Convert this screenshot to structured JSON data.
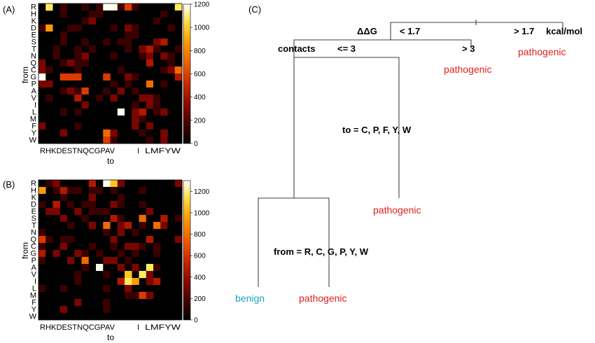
{
  "panels": {
    "a": {
      "label": "(A)",
      "x_title": "to",
      "y_title": "from",
      "colorbar": {
        "max": 1200,
        "ticks": [
          0,
          200,
          400,
          600,
          800,
          1000,
          1200
        ]
      }
    },
    "b": {
      "label": "(B)",
      "x_title": "to",
      "y_title": "from",
      "colorbar": {
        "max": 1300,
        "ticks": [
          0,
          200,
          400,
          600,
          800,
          1000,
          1200
        ]
      }
    },
    "c": {
      "label": "(C)"
    }
  },
  "amino_acids": [
    "R",
    "H",
    "K",
    "D",
    "E",
    "S",
    "T",
    "N",
    "Q",
    "C",
    "G",
    "P",
    "A",
    "V",
    "I",
    "L",
    "M",
    "F",
    "Y",
    "W"
  ],
  "x_tick_strings": {
    "group1": "RHKDESTNQCGPAV",
    "group2": "I",
    "group3": "LMFYW"
  },
  "colormap": [
    "#000000",
    "#3a0000",
    "#7a0500",
    "#b01800",
    "#dc3a00",
    "#f26a00",
    "#fb9a06",
    "#ffc520",
    "#ffeb5a",
    "#fffff0"
  ],
  "chart_data": [
    {
      "type": "heatmap",
      "panel": "A",
      "xlabel": "to",
      "ylabel": "from",
      "zlim": [
        0,
        1200
      ],
      "rows": [
        "R",
        "H",
        "K",
        "D",
        "E",
        "S",
        "T",
        "N",
        "Q",
        "C",
        "G",
        "P",
        "A",
        "V",
        "I",
        "L",
        "M",
        "F",
        "Y",
        "W"
      ],
      "cols": [
        "R",
        "H",
        "K",
        "D",
        "E",
        "S",
        "T",
        "N",
        "Q",
        "C",
        "G",
        "P",
        "A",
        "V",
        "I",
        "L",
        "M",
        "F",
        "Y",
        "W"
      ],
      "values": [
        [
          0,
          1050,
          60,
          70,
          40,
          50,
          80,
          60,
          90,
          1150,
          1150,
          120,
          560,
          70,
          40,
          30,
          40,
          20,
          30,
          1050
        ],
        [
          40,
          0,
          30,
          150,
          60,
          40,
          30,
          100,
          80,
          50,
          40,
          60,
          30,
          50,
          20,
          60,
          40,
          90,
          40,
          30
        ],
        [
          30,
          20,
          0,
          40,
          60,
          30,
          120,
          300,
          40,
          20,
          30,
          40,
          20,
          30,
          60,
          40,
          100,
          30,
          20,
          30
        ],
        [
          80,
          850,
          40,
          0,
          100,
          80,
          60,
          50,
          40,
          30,
          70,
          30,
          200,
          180,
          40,
          30,
          30,
          20,
          120,
          20
        ],
        [
          50,
          40,
          50,
          80,
          0,
          40,
          50,
          40,
          60,
          30,
          50,
          30,
          180,
          90,
          40,
          30,
          40,
          20,
          30,
          20
        ],
        [
          60,
          40,
          30,
          70,
          40,
          0,
          150,
          60,
          50,
          120,
          60,
          120,
          80,
          30,
          60,
          40,
          300,
          380,
          30,
          60
        ],
        [
          40,
          30,
          80,
          50,
          40,
          90,
          0,
          70,
          40,
          30,
          30,
          60,
          140,
          40,
          320,
          400,
          90,
          30,
          60,
          70
        ],
        [
          50,
          60,
          170,
          60,
          40,
          150,
          200,
          0,
          60,
          30,
          90,
          40,
          60,
          40,
          100,
          300,
          60,
          200,
          130,
          40
        ],
        [
          300,
          50,
          40,
          70,
          200,
          70,
          100,
          60,
          0,
          40,
          40,
          60,
          40,
          50,
          60,
          400,
          60,
          60,
          140,
          50
        ],
        [
          300,
          150,
          50,
          40,
          40,
          90,
          40,
          40,
          60,
          0,
          60,
          90,
          40,
          50,
          30,
          50,
          40,
          100,
          200,
          600
        ],
        [
          1250,
          60,
          40,
          550,
          540,
          500,
          60,
          50,
          40,
          550,
          0,
          40,
          250,
          100,
          40,
          60,
          40,
          60,
          30,
          400
        ],
        [
          300,
          250,
          40,
          30,
          40,
          60,
          40,
          50,
          40,
          60,
          70,
          0,
          100,
          50,
          60,
          700,
          40,
          70,
          60,
          30
        ],
        [
          60,
          50,
          40,
          150,
          220,
          120,
          470,
          40,
          60,
          80,
          60,
          200,
          0,
          80,
          40,
          60,
          60,
          40,
          20,
          30
        ],
        [
          40,
          90,
          30,
          60,
          60,
          350,
          60,
          30,
          100,
          50,
          300,
          40,
          60,
          0,
          200,
          250,
          80,
          60,
          40,
          30
        ],
        [
          60,
          40,
          30,
          40,
          50,
          60,
          200,
          40,
          60,
          40,
          50,
          60,
          60,
          180,
          0,
          300,
          70,
          60,
          40,
          30
        ],
        [
          30,
          40,
          30,
          160,
          40,
          70,
          40,
          50,
          60,
          40,
          60,
          1150,
          60,
          200,
          350,
          0,
          150,
          200,
          40,
          30
        ],
        [
          50,
          60,
          40,
          40,
          50,
          60,
          40,
          40,
          60,
          40,
          60,
          40,
          30,
          200,
          150,
          60,
          0,
          40,
          30,
          30
        ],
        [
          200,
          40,
          40,
          60,
          40,
          70,
          60,
          40,
          60,
          40,
          30,
          60,
          50,
          200,
          60,
          300,
          60,
          0,
          40,
          30
        ],
        [
          60,
          40,
          30,
          250,
          40,
          40,
          50,
          60,
          40,
          700,
          300,
          40,
          60,
          40,
          70,
          40,
          60,
          250,
          0,
          50
        ],
        [
          50,
          60,
          40,
          60,
          40,
          50,
          60,
          40,
          60,
          500,
          80,
          40,
          60,
          40,
          60,
          70,
          60,
          250,
          60,
          0
        ]
      ]
    },
    {
      "type": "heatmap",
      "panel": "B",
      "xlabel": "to",
      "ylabel": "from",
      "zlim": [
        0,
        1300
      ],
      "rows": [
        "R",
        "H",
        "K",
        "D",
        "E",
        "S",
        "T",
        "N",
        "Q",
        "C",
        "G",
        "P",
        "A",
        "V",
        "I",
        "L",
        "M",
        "F",
        "Y",
        "W"
      ],
      "cols": [
        "R",
        "H",
        "K",
        "D",
        "E",
        "S",
        "T",
        "N",
        "Q",
        "C",
        "G",
        "P",
        "A",
        "V",
        "I",
        "L",
        "M",
        "F",
        "Y",
        "W"
      ],
      "values": [
        [
          0,
          200,
          300,
          60,
          70,
          50,
          70,
          500,
          60,
          1300,
          1000,
          300,
          60,
          40,
          50,
          60,
          40,
          60,
          70,
          300
        ],
        [
          900,
          0,
          100,
          450,
          200,
          80,
          60,
          200,
          90,
          60,
          80,
          70,
          60,
          50,
          80,
          60,
          40,
          70,
          60,
          50
        ],
        [
          70,
          40,
          0,
          80,
          60,
          70,
          50,
          300,
          60,
          50,
          60,
          80,
          40,
          60,
          40,
          50,
          60,
          40,
          30,
          40
        ],
        [
          150,
          60,
          400,
          0,
          120,
          60,
          150,
          80,
          60,
          70,
          300,
          90,
          60,
          60,
          80,
          40,
          60,
          50,
          60,
          40
        ],
        [
          60,
          300,
          250,
          70,
          0,
          350,
          60,
          80,
          90,
          200,
          60,
          70,
          60,
          50,
          60,
          350,
          60,
          60,
          60,
          40
        ],
        [
          60,
          40,
          60,
          300,
          60,
          0,
          80,
          60,
          50,
          60,
          400,
          200,
          60,
          40,
          700,
          60,
          40,
          500,
          60,
          100
        ],
        [
          60,
          50,
          40,
          60,
          150,
          60,
          0,
          250,
          60,
          700,
          60,
          300,
          400,
          60,
          200,
          60,
          700,
          300,
          60,
          50
        ],
        [
          80,
          60,
          60,
          60,
          70,
          60,
          70,
          0,
          60,
          80,
          60,
          250,
          60,
          100,
          50,
          60,
          60,
          50,
          40,
          60
        ],
        [
          600,
          150,
          60,
          80,
          80,
          60,
          60,
          60,
          0,
          60,
          300,
          60,
          70,
          60,
          60,
          400,
          60,
          40,
          60,
          300
        ],
        [
          200,
          60,
          60,
          250,
          60,
          60,
          70,
          80,
          60,
          0,
          100,
          60,
          300,
          300,
          200,
          60,
          200,
          60,
          60,
          50
        ],
        [
          500,
          70,
          300,
          60,
          60,
          300,
          80,
          60,
          150,
          60,
          0,
          120,
          60,
          200,
          60,
          60,
          200,
          60,
          60,
          60
        ],
        [
          80,
          60,
          60,
          60,
          300,
          60,
          700,
          60,
          60,
          300,
          250,
          0,
          100,
          60,
          60,
          60,
          60,
          60,
          60,
          60
        ],
        [
          70,
          60,
          60,
          60,
          60,
          60,
          100,
          60,
          1300,
          60,
          60,
          300,
          0,
          250,
          60,
          1100,
          100,
          60,
          60,
          60
        ],
        [
          60,
          60,
          60,
          60,
          60,
          80,
          60,
          60,
          60,
          80,
          60,
          60,
          1000,
          0,
          1100,
          350,
          60,
          60,
          60,
          60
        ],
        [
          60,
          60,
          60,
          60,
          60,
          80,
          60,
          60,
          60,
          60,
          60,
          400,
          1200,
          800,
          0,
          300,
          400,
          60,
          60,
          60
        ],
        [
          200,
          60,
          60,
          200,
          60,
          60,
          60,
          60,
          60,
          80,
          60,
          60,
          250,
          60,
          60,
          0,
          60,
          60,
          60,
          60
        ],
        [
          60,
          60,
          60,
          60,
          60,
          60,
          60,
          60,
          60,
          60,
          60,
          60,
          100,
          200,
          600,
          300,
          0,
          60,
          60,
          60
        ],
        [
          60,
          60,
          60,
          60,
          60,
          300,
          60,
          60,
          60,
          80,
          60,
          60,
          60,
          60,
          60,
          60,
          60,
          0,
          60,
          60
        ],
        [
          60,
          60,
          60,
          300,
          60,
          60,
          60,
          60,
          60,
          80,
          60,
          60,
          60,
          60,
          60,
          60,
          60,
          60,
          0,
          60
        ],
        [
          60,
          60,
          60,
          60,
          60,
          60,
          60,
          60,
          60,
          60,
          60,
          60,
          60,
          60,
          60,
          60,
          60,
          60,
          60,
          0
        ]
      ]
    }
  ],
  "tree": {
    "ddg_label": "ΔΔG",
    "ddg_low": "< 1.7",
    "ddg_high": "> 1.7",
    "ddg_unit": "kcal/mol",
    "contacts_label": "contacts",
    "contacts_low": "<= 3",
    "contacts_high": "> 3",
    "to_rule": "to =  C, P, F, Y, W",
    "from_rule": "from =  R, C, G, P, Y, W",
    "leaf_ddg_high": "pathogenic",
    "leaf_contacts_high": "pathogenic",
    "leaf_to": "pathogenic",
    "leaf_from_yes": "benign",
    "leaf_from_no": "pathogenic"
  }
}
